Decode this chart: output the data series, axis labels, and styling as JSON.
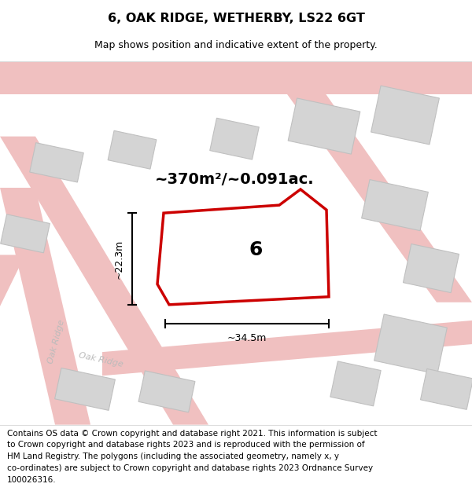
{
  "title": "6, OAK RIDGE, WETHERBY, LS22 6GT",
  "subtitle": "Map shows position and indicative extent of the property.",
  "footer_lines": [
    "Contains OS data © Crown copyright and database right 2021. This information is subject",
    "to Crown copyright and database rights 2023 and is reproduced with the permission of",
    "HM Land Registry. The polygons (including the associated geometry, namely x, y",
    "co-ordinates) are subject to Crown copyright and database rights 2023 Ordnance Survey",
    "100026316."
  ],
  "area_label": "~370m²/~0.091ac.",
  "number_label": "6",
  "dim_width": "~34.5m",
  "dim_height": "~22.3m",
  "bg_color": "#f7f2f2",
  "road_color": "#f0c0c0",
  "building_fill": "#d4d4d4",
  "building_edge": "#c0c0c0",
  "plot_outline_color": "#cc0000",
  "plot_fill": "#ffffff",
  "road_label_color": "#bbbbbb",
  "title_fontsize": 11.5,
  "subtitle_fontsize": 9,
  "footer_fontsize": 7.5,
  "area_fontsize": 14,
  "number_fontsize": 18,
  "dim_fontsize": 9,
  "road_label_fontsize": 8
}
